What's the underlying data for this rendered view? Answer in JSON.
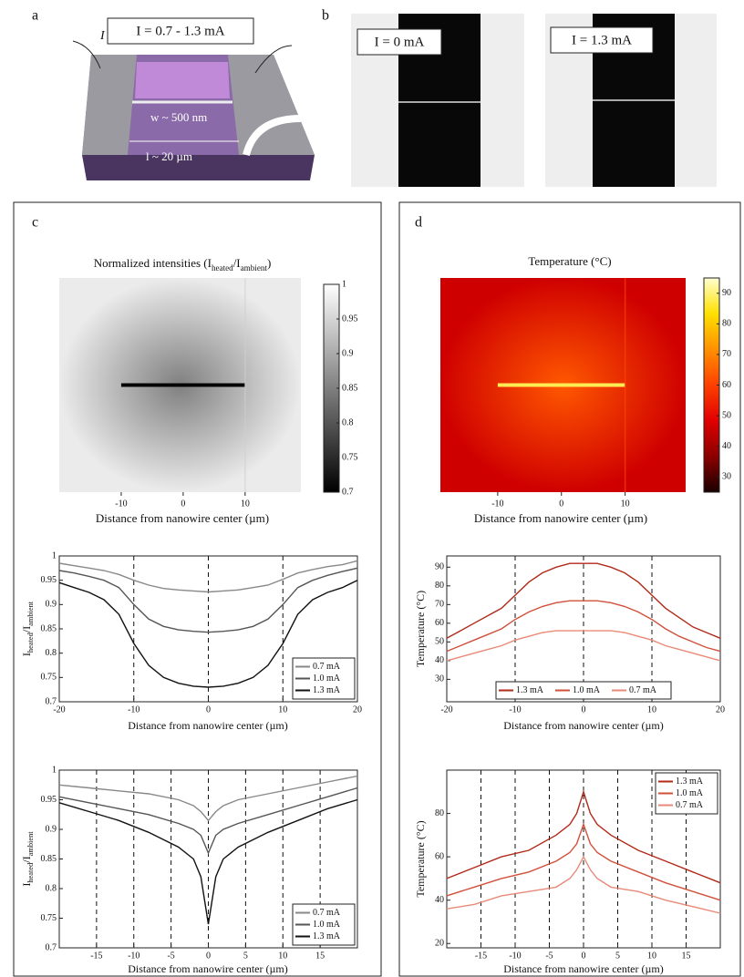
{
  "figure": {
    "panel_labels": [
      "a",
      "b",
      "c",
      "d"
    ],
    "schematic": {
      "current_range": "I = 0.7 - 1.3 mA",
      "current_symbol": "I",
      "width": "w ~ 500 nm",
      "length": "l ~ 20 µm"
    },
    "images": [
      {
        "label": "I = 0 mA"
      },
      {
        "label": "I = 1.3 mA"
      }
    ]
  },
  "chart_data": [
    {
      "type": "heatmap",
      "title": [
        "Normalized intensities (I",
        "heated",
        "/I",
        "ambient",
        ")"
      ],
      "xlabel": "Distance from nanowire center (µm)",
      "xlim": [
        -20,
        19
      ],
      "xticks": [
        -10,
        0,
        10
      ],
      "clim": [
        0.7,
        1
      ],
      "cticks": [
        0.7,
        0.75,
        0.8,
        0.85,
        0.9,
        0.95,
        1
      ],
      "colormap": [
        "#000000",
        "#ffffff"
      ]
    },
    {
      "type": "line",
      "xlabel": "Distance from nanowire center (µm)",
      "ylabel": [
        "I",
        "heated",
        "/I",
        "ambient"
      ],
      "x": [
        -20,
        -18,
        -16,
        -14,
        -12,
        -10,
        -8,
        -6,
        -4,
        -2,
        0,
        2,
        4,
        6,
        8,
        10,
        12,
        14,
        16,
        18,
        20
      ],
      "series": [
        {
          "name": "0.7 mA",
          "color": "#888888",
          "values": [
            0.985,
            0.98,
            0.975,
            0.97,
            0.962,
            0.95,
            0.94,
            0.933,
            0.93,
            0.928,
            0.926,
            0.928,
            0.93,
            0.935,
            0.94,
            0.952,
            0.965,
            0.972,
            0.978,
            0.982,
            0.99
          ]
        },
        {
          "name": "1.0 mA",
          "color": "#555555",
          "values": [
            0.97,
            0.965,
            0.958,
            0.95,
            0.935,
            0.9,
            0.87,
            0.855,
            0.848,
            0.845,
            0.843,
            0.845,
            0.848,
            0.855,
            0.87,
            0.9,
            0.935,
            0.95,
            0.96,
            0.968,
            0.975
          ]
        },
        {
          "name": "1.3 mA",
          "color": "#111111",
          "values": [
            0.945,
            0.935,
            0.925,
            0.91,
            0.88,
            0.82,
            0.775,
            0.75,
            0.738,
            0.732,
            0.73,
            0.732,
            0.738,
            0.75,
            0.775,
            0.82,
            0.88,
            0.91,
            0.925,
            0.935,
            0.95
          ]
        }
      ],
      "xlim": [
        -20,
        20
      ],
      "xticks": [
        -20,
        -10,
        0,
        10,
        20
      ],
      "ylim": [
        0.7,
        1
      ],
      "yticks": [
        0.7,
        0.75,
        0.8,
        0.85,
        0.9,
        0.95,
        1
      ],
      "vlines": [
        -10,
        0,
        10
      ],
      "legend": "lower right"
    },
    {
      "type": "line",
      "xlabel": "Distance from nanowire center (µm)",
      "ylabel": [
        "I",
        "heated",
        "/I",
        "ambient"
      ],
      "x": [
        -20,
        -16,
        -12,
        -8,
        -4,
        -2,
        -1,
        0,
        1,
        2,
        4,
        8,
        12,
        16,
        20
      ],
      "series": [
        {
          "name": "0.7 mA",
          "color": "#888888",
          "values": [
            0.975,
            0.97,
            0.965,
            0.96,
            0.95,
            0.94,
            0.93,
            0.915,
            0.93,
            0.94,
            0.95,
            0.96,
            0.97,
            0.98,
            0.99
          ]
        },
        {
          "name": "1.0 mA",
          "color": "#555555",
          "values": [
            0.955,
            0.945,
            0.935,
            0.925,
            0.91,
            0.9,
            0.89,
            0.86,
            0.89,
            0.9,
            0.91,
            0.925,
            0.94,
            0.955,
            0.97
          ]
        },
        {
          "name": "1.3 mA",
          "color": "#111111",
          "values": [
            0.945,
            0.93,
            0.915,
            0.895,
            0.87,
            0.85,
            0.82,
            0.74,
            0.82,
            0.85,
            0.87,
            0.895,
            0.915,
            0.935,
            0.95
          ]
        }
      ],
      "xlim": [
        -20,
        20
      ],
      "xticks": [
        -15,
        -10,
        -5,
        0,
        5,
        10,
        15
      ],
      "ylim": [
        0.7,
        1
      ],
      "yticks": [
        0.7,
        0.75,
        0.8,
        0.85,
        0.9,
        0.95,
        1
      ],
      "vlines": [
        -15,
        -10,
        -5,
        0,
        5,
        10,
        15
      ],
      "legend": "lower right"
    },
    {
      "type": "heatmap",
      "title": [
        "Temperature (°C)"
      ],
      "xlabel": "Distance from nanowire center (µm)",
      "xlim": [
        -19,
        19.5
      ],
      "xticks": [
        -10,
        0,
        10
      ],
      "clim": [
        25,
        95
      ],
      "cticks": [
        30,
        40,
        50,
        60,
        70,
        80,
        90
      ],
      "colormap": [
        "#1a0000",
        "#8b0000",
        "#e00000",
        "#ff4000",
        "#ff9000",
        "#ffe000",
        "#ffffd0"
      ]
    },
    {
      "type": "line",
      "xlabel": "Distance from nanowire center (µm)",
      "ylabel": "Temperature (°C)",
      "x": [
        -20,
        -18,
        -16,
        -14,
        -12,
        -10,
        -8,
        -6,
        -4,
        -2,
        0,
        2,
        4,
        6,
        8,
        10,
        12,
        14,
        16,
        18,
        20
      ],
      "series": [
        {
          "name": "1.3 mA",
          "color": "#b22a1a",
          "values": [
            52,
            56,
            60,
            64,
            68,
            75,
            82,
            87,
            90,
            92,
            92,
            92,
            90,
            87,
            82,
            75,
            68,
            63,
            58,
            55,
            52
          ]
        },
        {
          "name": "1.0 mA",
          "color": "#d0503a",
          "values": [
            45,
            48,
            51,
            54,
            57,
            62,
            66,
            69,
            71,
            72,
            72,
            72,
            71,
            69,
            66,
            62,
            57,
            53,
            50,
            47,
            45
          ]
        },
        {
          "name": "0.7 mA",
          "color": "#e88a78",
          "values": [
            40,
            42,
            44,
            46,
            48,
            51,
            53,
            55,
            56,
            56,
            56,
            56,
            56,
            55,
            53,
            51,
            48,
            46,
            44,
            42,
            40
          ]
        }
      ],
      "xlim": [
        -20,
        20
      ],
      "xticks": [
        -20,
        -10,
        0,
        10,
        20
      ],
      "ylim": [
        18,
        96
      ],
      "yticks": [
        30,
        40,
        50,
        60,
        70,
        80,
        90
      ],
      "vlines": [
        -10,
        0,
        10
      ],
      "legend": "lower center"
    },
    {
      "type": "line",
      "xlabel": "Distance from nanowire center (µm)",
      "ylabel": "Temperature (°C)",
      "x": [
        -20,
        -16,
        -12,
        -8,
        -4,
        -2,
        -1,
        0,
        1,
        2,
        4,
        8,
        12,
        16,
        20
      ],
      "series": [
        {
          "name": "1.3 mA",
          "color": "#b22a1a",
          "values": [
            50,
            55,
            60,
            63,
            70,
            75,
            80,
            90,
            80,
            75,
            70,
            63,
            58,
            53,
            48
          ]
        },
        {
          "name": "1.0 mA",
          "color": "#d0503a",
          "values": [
            42,
            46,
            50,
            53,
            58,
            62,
            66,
            75,
            66,
            62,
            58,
            53,
            48,
            44,
            40
          ]
        },
        {
          "name": "0.7 mA",
          "color": "#e88a78",
          "values": [
            36,
            38,
            42,
            44,
            46,
            50,
            54,
            60,
            54,
            50,
            46,
            44,
            40,
            37,
            34
          ]
        }
      ],
      "xlim": [
        -20,
        20
      ],
      "xticks": [
        -15,
        -10,
        -5,
        0,
        5,
        10,
        15
      ],
      "ylim": [
        18,
        100
      ],
      "yticks": [
        20,
        40,
        60,
        80
      ],
      "vlines": [
        -15,
        -10,
        -5,
        0,
        5,
        10,
        15
      ],
      "legend": "upper right"
    }
  ]
}
